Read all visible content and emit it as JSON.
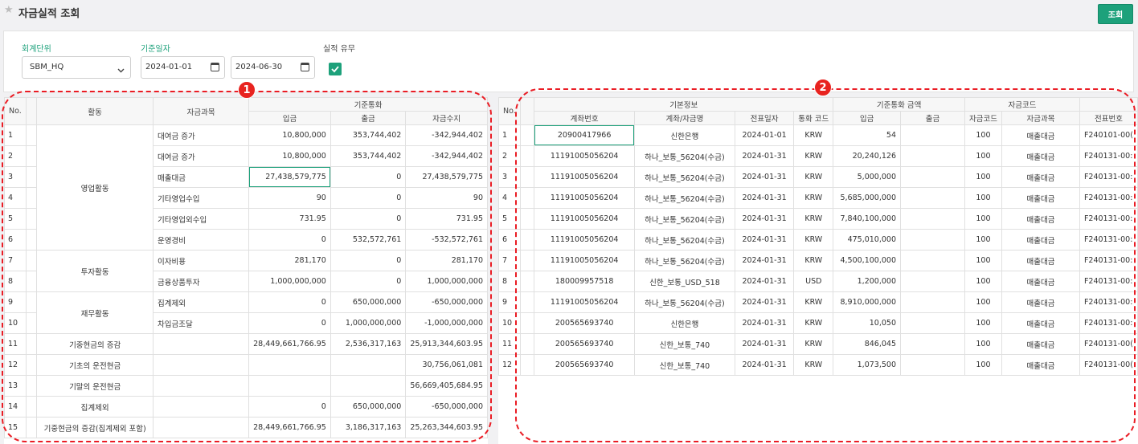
{
  "header": {
    "title": "자금실적 조회",
    "search_label": "조회",
    "star_icon": "star-icon"
  },
  "filter": {
    "unit_label": "회계단위",
    "unit_value": "SBM_HQ",
    "date_label": "기준일자",
    "date_from": "2024-01-01",
    "date_to": "2024-06-30",
    "actual_label": "실적 유무",
    "actual_checked": true
  },
  "colors": {
    "accent": "#1da17b",
    "annotation": "#e8231f"
  },
  "annotations": [
    "1",
    "2"
  ],
  "grid1": {
    "headers": {
      "no": "No.",
      "activity": "활동",
      "subject": "자금과목",
      "group": "기준통화",
      "in": "입금",
      "out": "출금",
      "balance": "자금수지"
    },
    "rows": [
      {
        "no": "1",
        "activity": "",
        "subject": "대여금 증가",
        "in": "10,800,000",
        "out": "353,744,402",
        "bal": "-342,944,402"
      },
      {
        "no": "2",
        "activity": "",
        "subject": "대여금 증가",
        "in": "10,800,000",
        "out": "353,744,402",
        "bal": "-342,944,402"
      },
      {
        "no": "3",
        "activity": "",
        "subject": "매출대금",
        "in": "27,438,579,775",
        "out": "0",
        "bal": "27,438,579,775"
      },
      {
        "no": "4",
        "activity": "영업활동",
        "subject": "기타영업수입",
        "in": "90",
        "out": "0",
        "bal": "90"
      },
      {
        "no": "5",
        "activity": "",
        "subject": "기타영업외수입",
        "in": "731.95",
        "out": "0",
        "bal": "731.95"
      },
      {
        "no": "6",
        "activity": "",
        "subject": "운영경비",
        "in": "0",
        "out": "532,572,761",
        "bal": "-532,572,761"
      },
      {
        "no": "7",
        "activity": "투자활동",
        "subject": "이자비용",
        "in": "281,170",
        "out": "0",
        "bal": "281,170"
      },
      {
        "no": "8",
        "activity": "",
        "subject": "금융상품투자",
        "in": "1,000,000,000",
        "out": "0",
        "bal": "1,000,000,000"
      },
      {
        "no": "9",
        "activity": "재무활동",
        "subject": "집계제외",
        "in": "0",
        "out": "650,000,000",
        "bal": "-650,000,000"
      },
      {
        "no": "10",
        "activity": "",
        "subject": "차입금조달",
        "in": "0",
        "out": "1,000,000,000",
        "bal": "-1,000,000,000"
      },
      {
        "no": "11",
        "activity": "기중현금의 증감",
        "subject": "",
        "in": "28,449,661,766.95",
        "out": "2,536,317,163",
        "bal": "25,913,344,603.95"
      },
      {
        "no": "12",
        "activity": "기초의 운전현금",
        "subject": "",
        "in": "",
        "out": "",
        "bal": "30,756,061,081"
      },
      {
        "no": "13",
        "activity": "기말의 운전현금",
        "subject": "",
        "in": "",
        "out": "",
        "bal": "56,669,405,684.95"
      },
      {
        "no": "14",
        "activity": "집계제외",
        "subject": "",
        "in": "0",
        "out": "650,000,000",
        "bal": "-650,000,000"
      },
      {
        "no": "15",
        "activity": "기중현금의 증감(집계제외 포함)",
        "subject": "",
        "in": "28,449,661,766.95",
        "out": "3,186,317,163",
        "bal": "25,263,344,603.95"
      }
    ]
  },
  "grid2": {
    "headers": {
      "no": "No.",
      "basic": "기본정보",
      "amount": "기준통화 금액",
      "code_group": "자금코드",
      "account_no": "계좌번호",
      "account_name": "계좌/자금명",
      "date": "전표일자",
      "currency": "통화 코드",
      "in": "입금",
      "out": "출금",
      "code": "자금코드",
      "subject": "자금과목",
      "slip": "전표번호"
    },
    "rows": [
      {
        "no": "1",
        "acct": "20900417966",
        "name": "신한은행",
        "date": "2024-01-01",
        "cur": "KRW",
        "in": "54",
        "out": "",
        "code": "100",
        "subj": "매출대금",
        "slip": "F240101-00("
      },
      {
        "no": "2",
        "acct": "11191005056204",
        "name": "하나_보통_56204(수금)",
        "date": "2024-01-31",
        "cur": "KRW",
        "in": "20,240,126",
        "out": "",
        "code": "100",
        "subj": "매출대금",
        "slip": "F240131-00:"
      },
      {
        "no": "3",
        "acct": "11191005056204",
        "name": "하나_보통_56204(수금)",
        "date": "2024-01-31",
        "cur": "KRW",
        "in": "5,000,000",
        "out": "",
        "code": "100",
        "subj": "매출대금",
        "slip": "F240131-00:"
      },
      {
        "no": "4",
        "acct": "11191005056204",
        "name": "하나_보통_56204(수금)",
        "date": "2024-01-31",
        "cur": "KRW",
        "in": "5,685,000,000",
        "out": "",
        "code": "100",
        "subj": "매출대금",
        "slip": "F240131-00:"
      },
      {
        "no": "5",
        "acct": "11191005056204",
        "name": "하나_보통_56204(수금)",
        "date": "2024-01-31",
        "cur": "KRW",
        "in": "7,840,100,000",
        "out": "",
        "code": "100",
        "subj": "매출대금",
        "slip": "F240131-00:"
      },
      {
        "no": "6",
        "acct": "11191005056204",
        "name": "하나_보통_56204(수금)",
        "date": "2024-01-31",
        "cur": "KRW",
        "in": "475,010,000",
        "out": "",
        "code": "100",
        "subj": "매출대금",
        "slip": "F240131-00:"
      },
      {
        "no": "7",
        "acct": "11191005056204",
        "name": "하나_보통_56204(수금)",
        "date": "2024-01-31",
        "cur": "KRW",
        "in": "4,500,100,000",
        "out": "",
        "code": "100",
        "subj": "매출대금",
        "slip": "F240131-00:"
      },
      {
        "no": "8",
        "acct": "180009957518",
        "name": "신한_보통_USD_518",
        "date": "2024-01-31",
        "cur": "USD",
        "in": "1,200,000",
        "out": "",
        "code": "100",
        "subj": "매출대금",
        "slip": "F240131-00:"
      },
      {
        "no": "9",
        "acct": "11191005056204",
        "name": "하나_보통_56204(수금)",
        "date": "2024-01-31",
        "cur": "KRW",
        "in": "8,910,000,000",
        "out": "",
        "code": "100",
        "subj": "매출대금",
        "slip": "F240131-00:"
      },
      {
        "no": "10",
        "acct": "200565693740",
        "name": "신한은행",
        "date": "2024-01-31",
        "cur": "KRW",
        "in": "10,050",
        "out": "",
        "code": "100",
        "subj": "매출대금",
        "slip": "F240131-00:"
      },
      {
        "no": "11",
        "acct": "200565693740",
        "name": "신한_보통_740",
        "date": "2024-01-31",
        "cur": "KRW",
        "in": "846,045",
        "out": "",
        "code": "100",
        "subj": "매출대금",
        "slip": "F240131-00("
      },
      {
        "no": "12",
        "acct": "200565693740",
        "name": "신한_보통_740",
        "date": "2024-01-31",
        "cur": "KRW",
        "in": "1,073,500",
        "out": "",
        "code": "100",
        "subj": "매출대금",
        "slip": "F240131-00("
      }
    ]
  }
}
